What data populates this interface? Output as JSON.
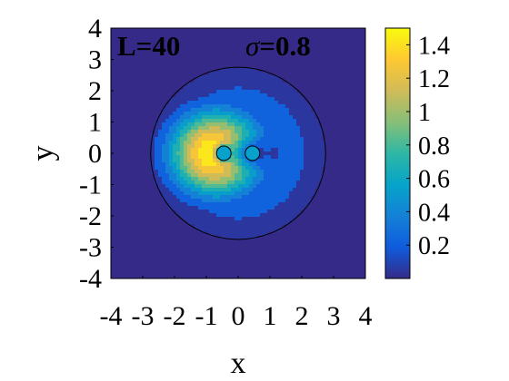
{
  "chart_data": {
    "type": "heatmap",
    "subtype": "filled-contour",
    "xlabel": "x",
    "ylabel": "y",
    "xlim": [
      -4,
      4
    ],
    "ylim": [
      -4,
      4
    ],
    "x_ticks": [
      {
        "value": -4,
        "label": "-4"
      },
      {
        "value": -3,
        "label": "-3"
      },
      {
        "value": -2,
        "label": "-2"
      },
      {
        "value": -1,
        "label": "-1"
      },
      {
        "value": 0,
        "label": "0"
      },
      {
        "value": 1,
        "label": "1"
      },
      {
        "value": 2,
        "label": "2"
      },
      {
        "value": 3,
        "label": "3"
      },
      {
        "value": 4,
        "label": "4"
      }
    ],
    "y_ticks": [
      {
        "value": 4,
        "label": "4"
      },
      {
        "value": 3,
        "label": "3"
      },
      {
        "value": 2,
        "label": "2"
      },
      {
        "value": 1,
        "label": "1"
      },
      {
        "value": 0,
        "label": "0"
      },
      {
        "value": -1,
        "label": "-1"
      },
      {
        "value": -2,
        "label": "-2"
      },
      {
        "value": -3,
        "label": "-3"
      },
      {
        "value": -4,
        "label": "-4"
      }
    ],
    "annotations": [
      {
        "text": "L=40"
      },
      {
        "sym": "σ",
        "text": "=0.8"
      }
    ],
    "colorbar": {
      "range": [
        0,
        1.5
      ],
      "ticks": [
        {
          "value": 0.2,
          "label": "0.2"
        },
        {
          "value": 0.4,
          "label": "0.4"
        },
        {
          "value": 0.6,
          "label": "0.6"
        },
        {
          "value": 0.8,
          "label": "0.8"
        },
        {
          "value": 1.0,
          "label": "1"
        },
        {
          "value": 1.2,
          "label": "1.2"
        },
        {
          "value": 1.4,
          "label": "1.4"
        }
      ],
      "colormap": "parula",
      "colors": [
        "#352a87",
        "#0f5cdd",
        "#1481d6",
        "#06a4ca",
        "#2eb7a4",
        "#87bf77",
        "#d1bb59",
        "#fec832",
        "#f9fb0e"
      ]
    },
    "field": {
      "description_values": "density values sampled on the x-y grid",
      "outer_disk_radius": 2.75,
      "peak_value": 1.5,
      "background_value": 0.05,
      "peak_center": [
        -0.75,
        0
      ],
      "vortices": [
        {
          "x": -0.45,
          "y": 0,
          "value": 0.55
        },
        {
          "x": 0.45,
          "y": 0,
          "value": 0.55
        }
      ],
      "contour_levels": [
        0.15,
        0.3,
        0.45,
        0.6,
        0.75,
        0.9,
        1.05,
        1.2,
        1.35
      ]
    },
    "grid": false
  }
}
